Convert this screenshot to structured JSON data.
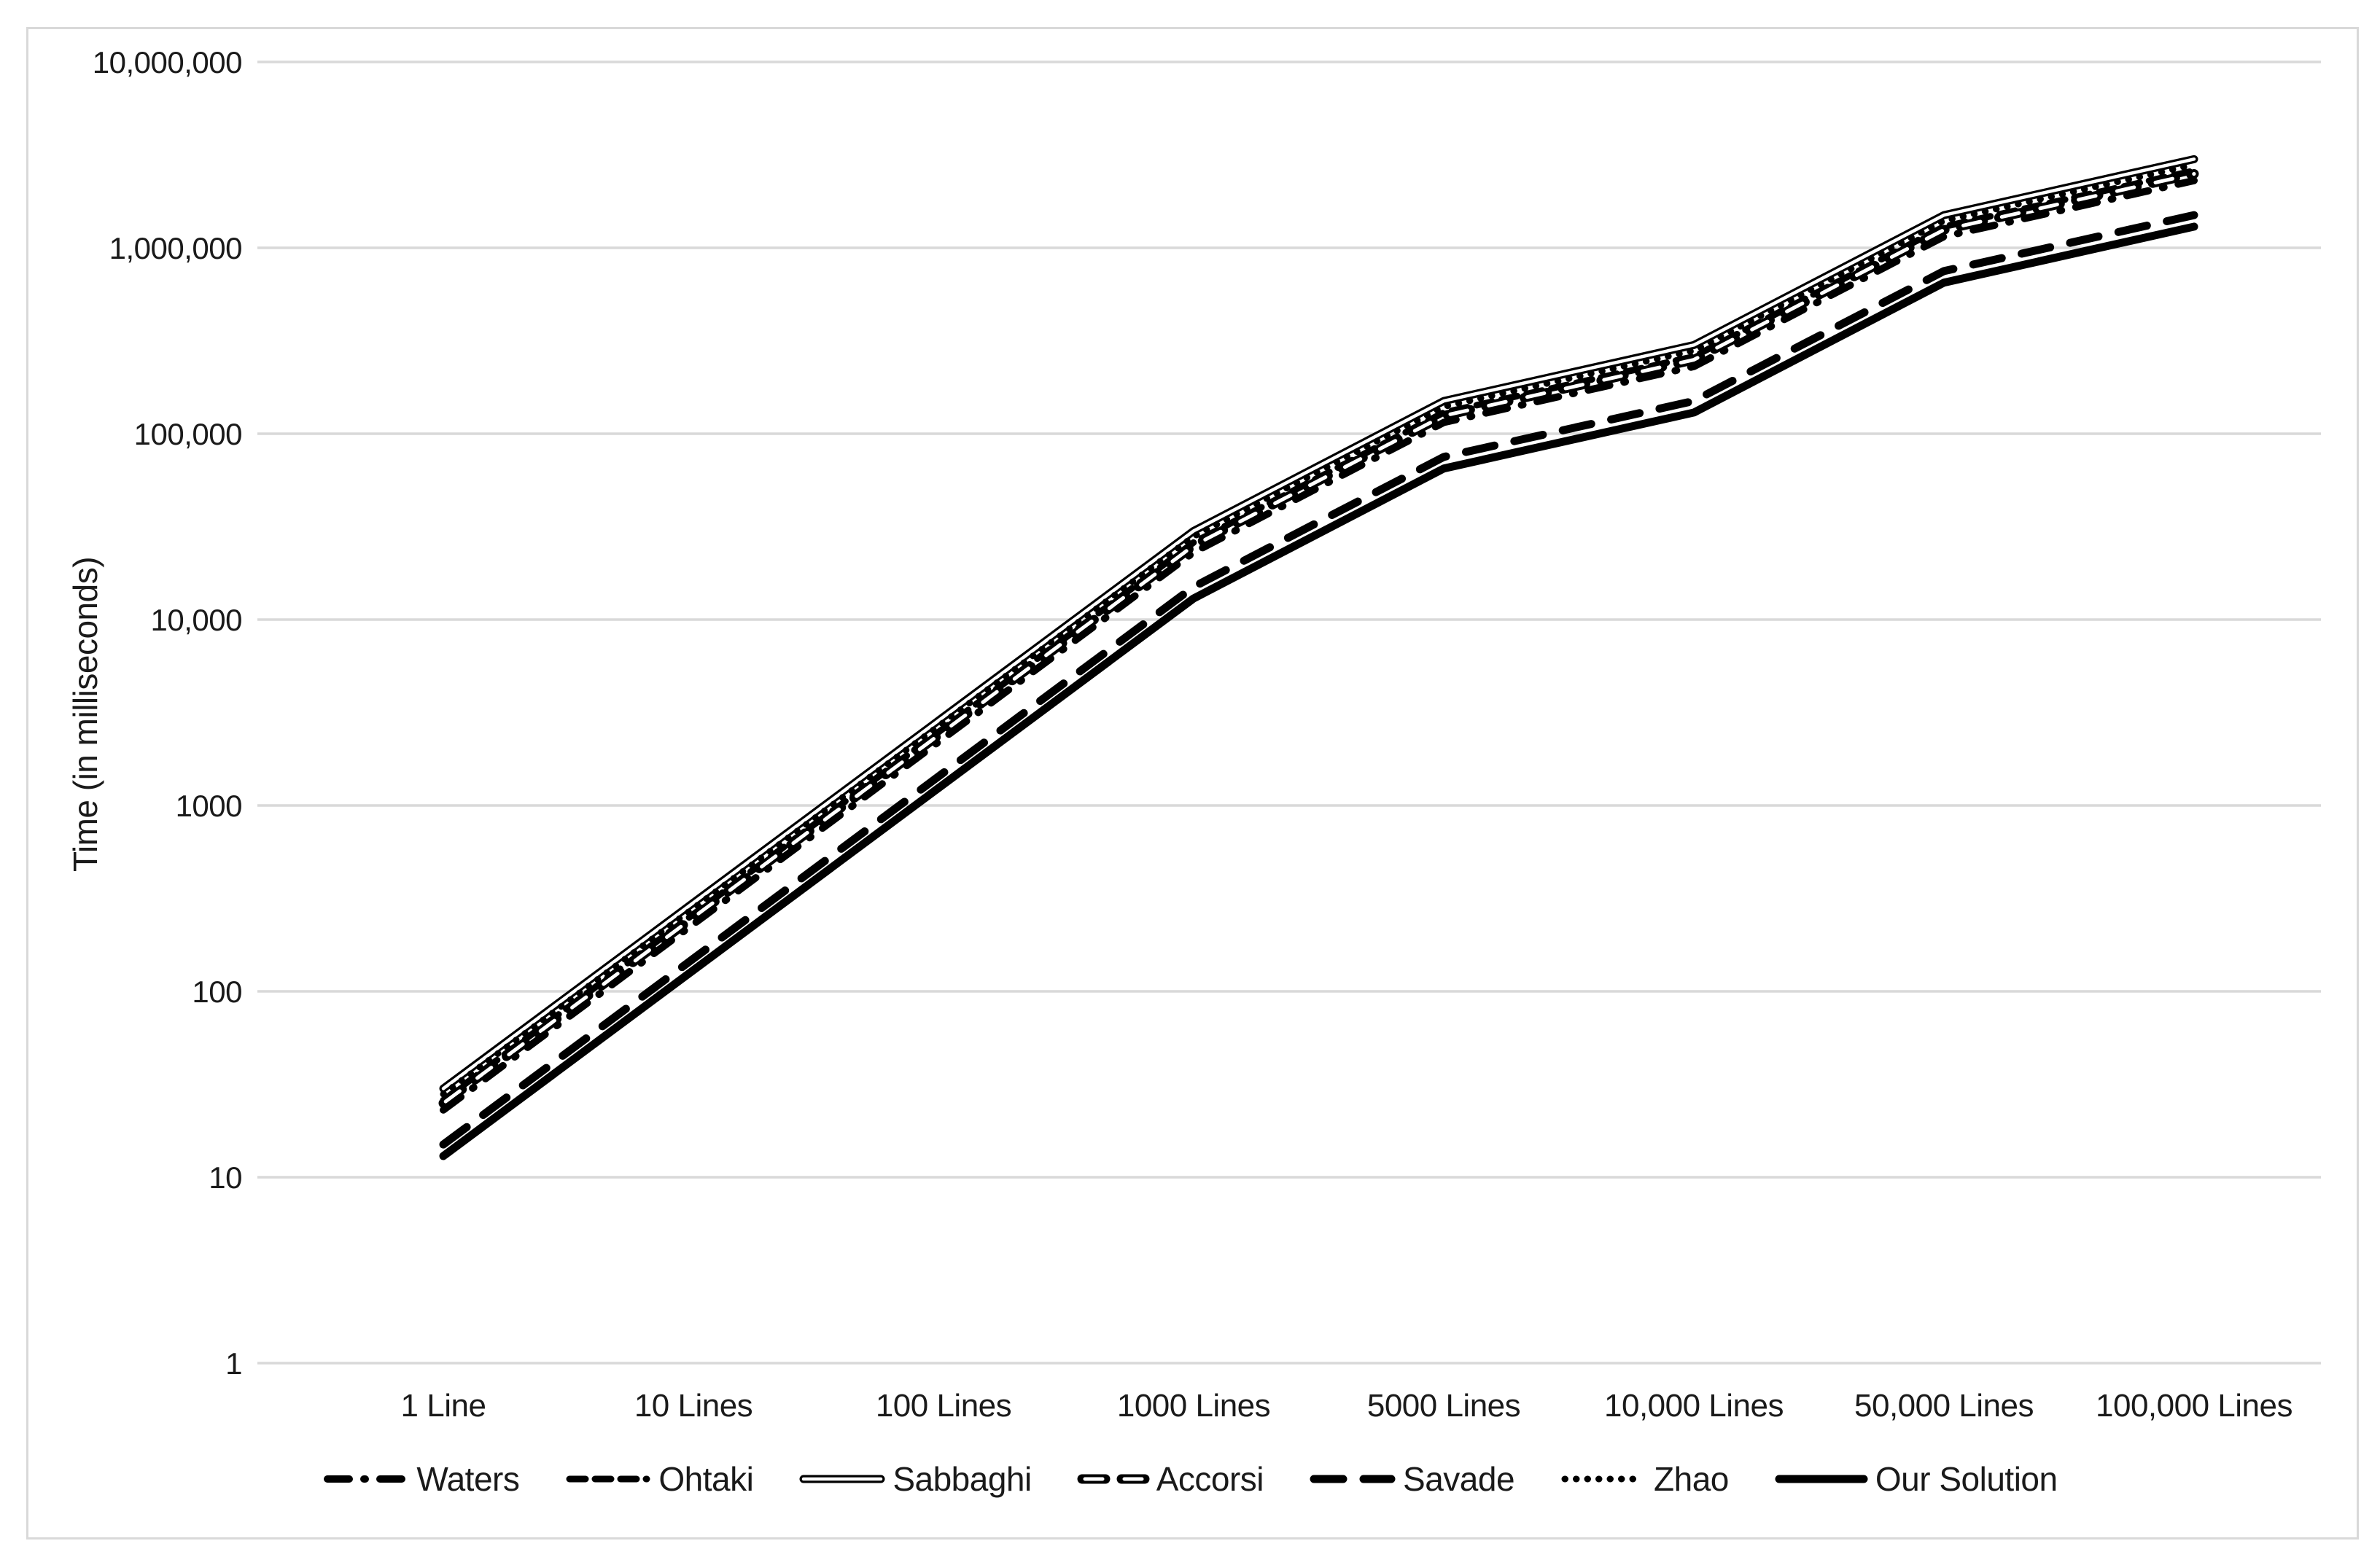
{
  "colors": {
    "background": "#ffffff",
    "frame": "#d9d9d9",
    "grid": "#d9d9d9",
    "text": "#1a1a1a",
    "series_line": "#000000",
    "inner_white": "#ffffff"
  },
  "chart_data": {
    "type": "line",
    "title": "",
    "xlabel": "",
    "ylabel": "Time (in milliseconds)",
    "y_scale": "log",
    "ylim": [
      1,
      10000000
    ],
    "grid": "horizontal",
    "legend_position": "bottom",
    "categories": [
      "1 Line",
      "10 Lines",
      "100 Lines",
      "1000 Lines",
      "5000 Lines",
      "10,000 Lines",
      "50,000 Lines",
      "100,000 Lines"
    ],
    "y_ticks": [
      {
        "label": "10,000,000",
        "value": 10000000
      },
      {
        "label": "1,000,000",
        "value": 1000000
      },
      {
        "label": "100,000",
        "value": 100000
      },
      {
        "label": "10,000",
        "value": 10000
      },
      {
        "label": "1000",
        "value": 1000
      },
      {
        "label": "100",
        "value": 100
      },
      {
        "label": "10",
        "value": 10
      },
      {
        "label": "1",
        "value": 1
      }
    ],
    "series": [
      {
        "name": "Waters",
        "style": "dash-dot",
        "marker": "dash-dot-line-icon",
        "color": "#000000",
        "values": [
          23,
          230,
          2300,
          23000,
          115000,
          230000,
          1150000,
          2300000
        ]
      },
      {
        "name": "Ohtaki",
        "style": "dashed",
        "marker": "dashed-line-icon",
        "color": "#000000",
        "values": [
          26,
          260,
          2600,
          26000,
          130000,
          260000,
          1300000,
          2600000
        ]
      },
      {
        "name": "Sabbaghi",
        "style": "double-solid",
        "marker": "double-line-icon",
        "color": "#000000",
        "values": [
          30,
          300,
          3000,
          30000,
          150000,
          300000,
          1500000,
          3000000
        ]
      },
      {
        "name": "Accorsi",
        "style": "hollow-dash",
        "marker": "hollow-dash-line-icon",
        "color": "#000000",
        "values": [
          25,
          250,
          2500,
          25000,
          125000,
          250000,
          1250000,
          2500000
        ]
      },
      {
        "name": "Savade",
        "style": "long-dash",
        "marker": "long-dash-line-icon",
        "color": "#000000",
        "values": [
          15,
          150,
          1500,
          15000,
          75000,
          150000,
          750000,
          1500000
        ]
      },
      {
        "name": "Zhao",
        "style": "dotted",
        "marker": "dotted-line-icon",
        "color": "#000000",
        "values": [
          28,
          280,
          2800,
          28000,
          140000,
          280000,
          1400000,
          2800000
        ]
      },
      {
        "name": "Our Solution",
        "style": "solid",
        "marker": "solid-line-icon",
        "color": "#000000",
        "values": [
          13,
          130,
          1300,
          13000,
          65000,
          130000,
          650000,
          1300000
        ]
      }
    ]
  }
}
